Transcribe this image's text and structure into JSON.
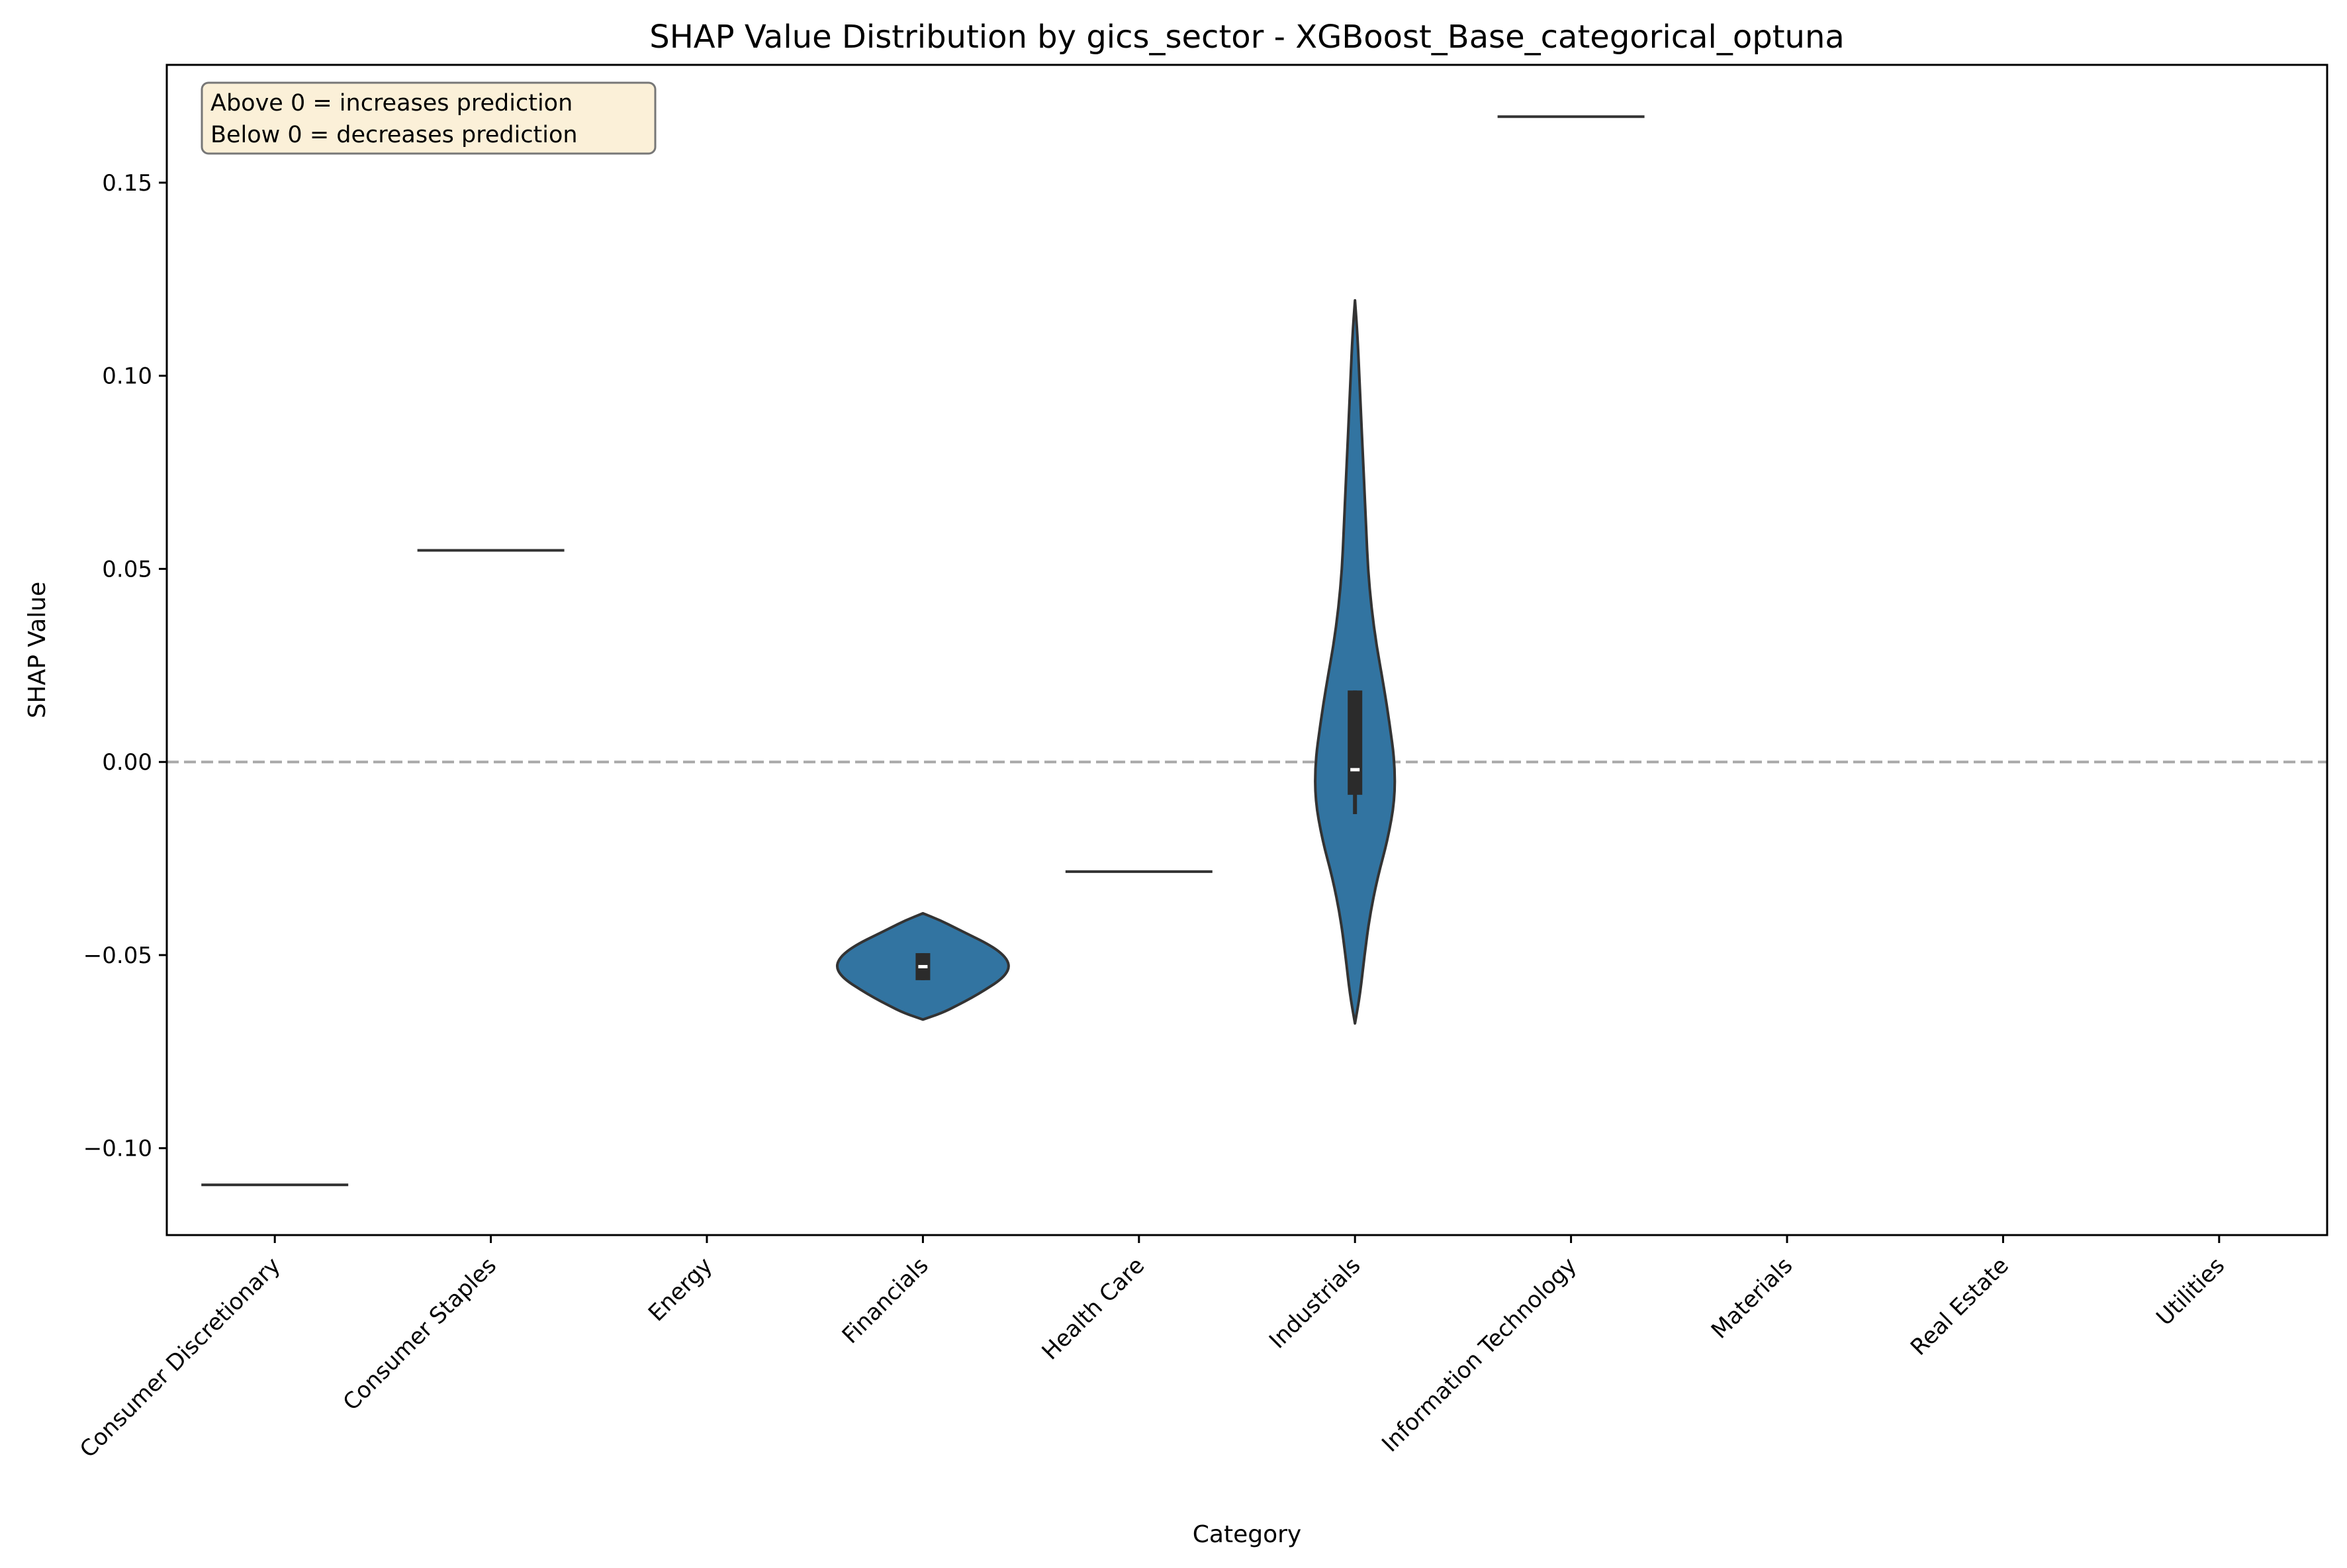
{
  "chart_data": {
    "type": "violin",
    "title": "SHAP Value Distribution by gics_sector - XGBoost_Base_categorical_optuna",
    "xlabel": "Category",
    "ylabel": "SHAP Value",
    "ylim": [
      -0.1225,
      0.1805
    ],
    "yticks": [
      -0.1,
      -0.05,
      0.0,
      0.05,
      0.1,
      0.15
    ],
    "ytick_labels": [
      "−0.10",
      "−0.05",
      "0.00",
      "0.05",
      "0.10",
      "0.15"
    ],
    "categories": [
      "Consumer Discretionary",
      "Consumer Staples",
      "Energy",
      "Financials",
      "Health Care",
      "Industrials",
      "Information Technology",
      "Materials",
      "Real Estate",
      "Utilities"
    ],
    "reference_line": {
      "y": 0.0,
      "style": "dashed",
      "color": "#aaaaaa"
    },
    "annotation": [
      "Above 0 = increases prediction",
      "Below 0 = decreases prediction"
    ],
    "violin_color": "#3274a1",
    "edge_color": "#333333",
    "groups": [
      {
        "category": "Consumer Discretionary",
        "kind": "single",
        "value": -0.1095
      },
      {
        "category": "Consumer Staples",
        "kind": "single",
        "value": 0.0548
      },
      {
        "category": "Energy",
        "kind": "empty"
      },
      {
        "category": "Financials",
        "kind": "violin",
        "min": -0.0667,
        "max": -0.0392,
        "q1": -0.0565,
        "median": -0.053,
        "q3": -0.0495,
        "whisker_low": -0.0565,
        "whisker_high": -0.0495,
        "density": [
          [
            -0.0667,
            0.0
          ],
          [
            -0.065,
            0.22
          ],
          [
            -0.063,
            0.4
          ],
          [
            -0.061,
            0.57
          ],
          [
            -0.059,
            0.72
          ],
          [
            -0.057,
            0.86
          ],
          [
            -0.055,
            0.96
          ],
          [
            -0.053,
            1.0
          ],
          [
            -0.051,
            0.97
          ],
          [
            -0.049,
            0.88
          ],
          [
            -0.047,
            0.74
          ],
          [
            -0.045,
            0.56
          ],
          [
            -0.043,
            0.38
          ],
          [
            -0.041,
            0.2
          ],
          [
            -0.0392,
            0.0
          ]
        ]
      },
      {
        "category": "Health Care",
        "kind": "single",
        "value": -0.0284
      },
      {
        "category": "Industrials",
        "kind": "violin",
        "min": -0.0677,
        "max": 0.1195,
        "q1": -0.0085,
        "median": -0.002,
        "q3": 0.0185,
        "whisker_low": -0.0135,
        "whisker_high": 0.0185,
        "density": [
          [
            -0.0677,
            0.0
          ],
          [
            -0.06,
            0.06
          ],
          [
            -0.05,
            0.11
          ],
          [
            -0.04,
            0.17
          ],
          [
            -0.03,
            0.26
          ],
          [
            -0.02,
            0.38
          ],
          [
            -0.01,
            0.46
          ],
          [
            0.0,
            0.46
          ],
          [
            0.01,
            0.4
          ],
          [
            0.02,
            0.33
          ],
          [
            0.03,
            0.25
          ],
          [
            0.04,
            0.19
          ],
          [
            0.05,
            0.15
          ],
          [
            0.06,
            0.13
          ],
          [
            0.07,
            0.11
          ],
          [
            0.08,
            0.09
          ],
          [
            0.09,
            0.07
          ],
          [
            0.1,
            0.05
          ],
          [
            0.11,
            0.03
          ],
          [
            0.1195,
            0.0
          ]
        ]
      },
      {
        "category": "Information Technology",
        "kind": "single",
        "value": 0.1671
      },
      {
        "category": "Materials",
        "kind": "empty"
      },
      {
        "category": "Real Estate",
        "kind": "empty"
      },
      {
        "category": "Utilities",
        "kind": "empty"
      }
    ]
  }
}
